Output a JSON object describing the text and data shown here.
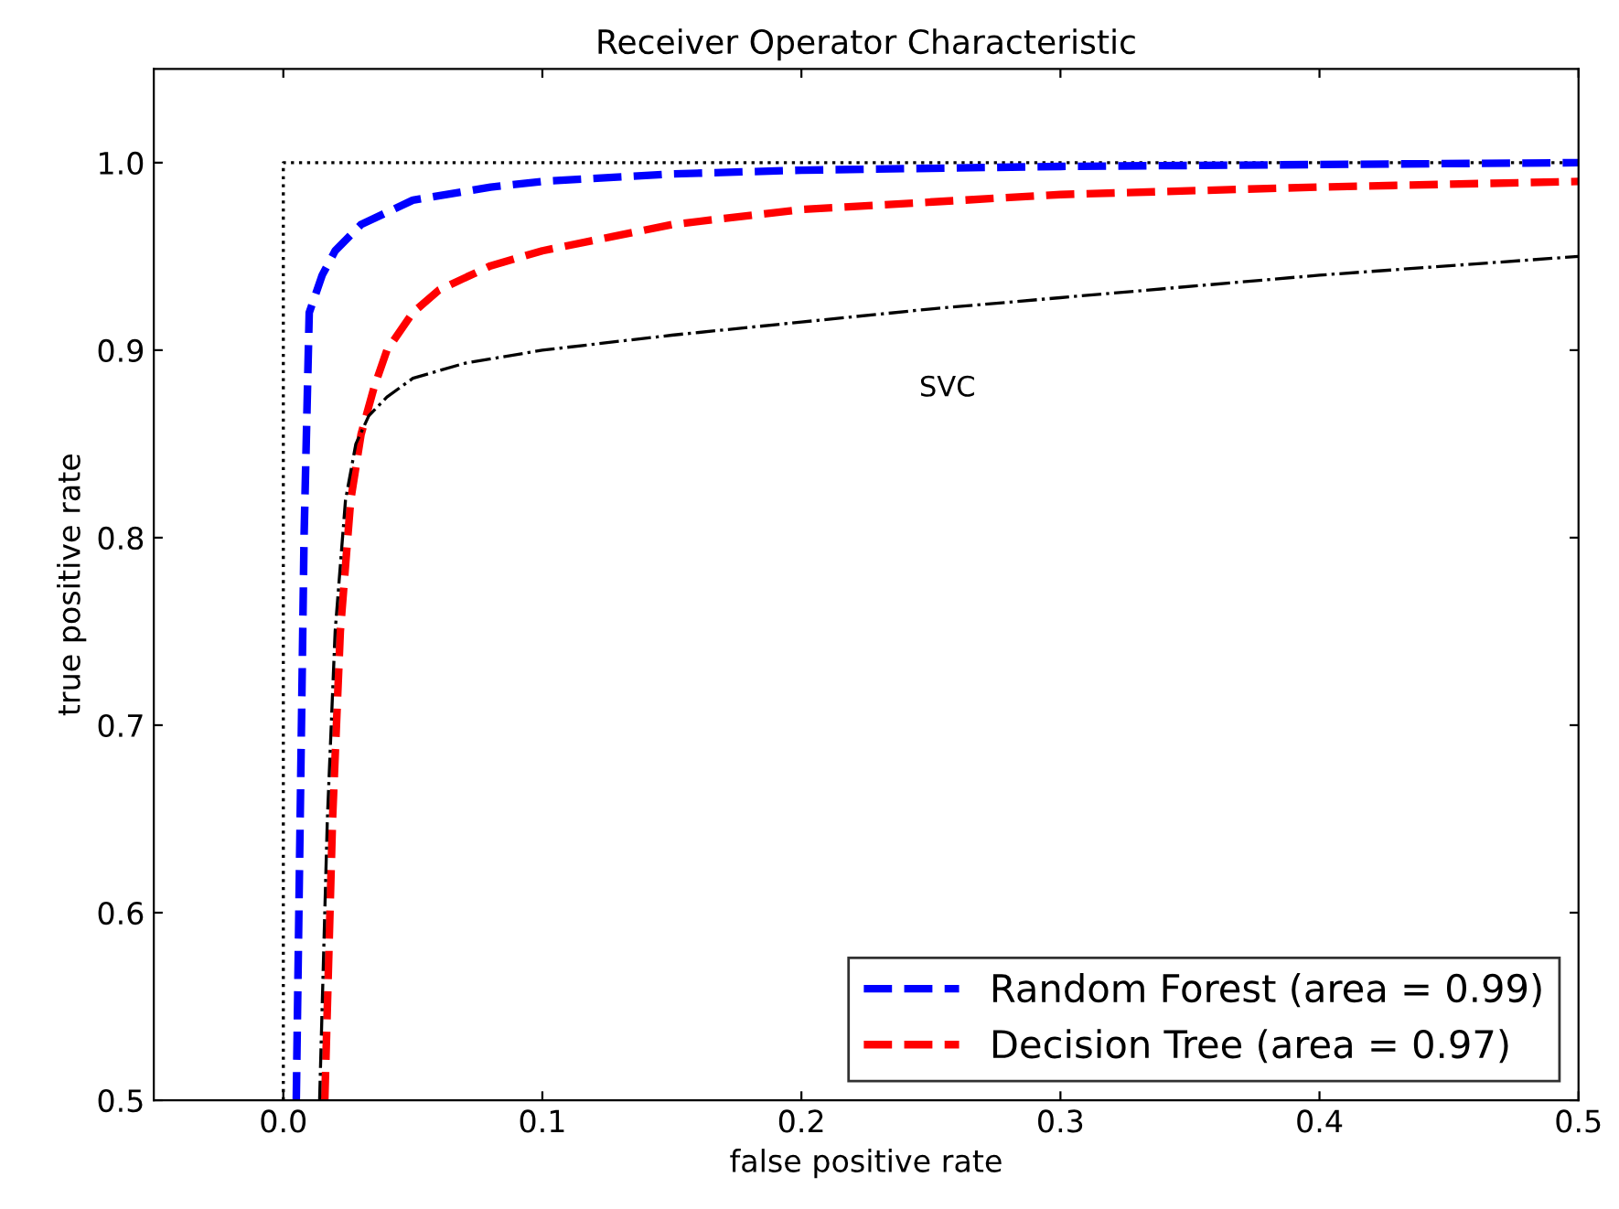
{
  "chart_data": {
    "type": "line",
    "title": "Receiver Operator Characteristic",
    "xlabel": "false positive rate",
    "ylabel": "true positive rate",
    "xlim": [
      -0.05,
      0.5
    ],
    "ylim": [
      0.5,
      1.05
    ],
    "xticks": [
      {
        "value": 0,
        "label": "0.0"
      },
      0.1,
      0.2,
      0.3,
      0.4,
      0.5
    ],
    "yticks": [
      0.5,
      0.6,
      0.7,
      0.8,
      0.9,
      {
        "value": 1,
        "label": "1.0"
      }
    ],
    "grid": false,
    "legend": "bottom right",
    "marker": "none",
    "series": [
      {
        "color": "#000000",
        "line_style": "dotted",
        "x": [
          0,
          0,
          0.5
        ],
        "values": [
          0.5,
          1,
          1
        ]
      },
      {
        "name": "Random Forest (area = 0.99)",
        "color": "#0000ff",
        "line_style": "dashed",
        "x": [
          0.005,
          0.008,
          0.01,
          0.015,
          0.02,
          0.03,
          0.05,
          0.08,
          0.1,
          0.15,
          0.2,
          0.3,
          0.4,
          0.5
        ],
        "values": [
          0.5,
          0.8,
          0.92,
          0.94,
          0.953,
          0.967,
          0.98,
          0.987,
          0.99,
          0.994,
          0.996,
          0.998,
          0.999,
          1.0
        ]
      },
      {
        "name": "Decision Tree (area = 0.97)",
        "color": "#ff0000",
        "line_style": "dashed",
        "x": [
          0.016,
          0.019,
          0.022,
          0.026,
          0.03,
          0.035,
          0.04,
          0.05,
          0.06,
          0.08,
          0.1,
          0.15,
          0.2,
          0.3,
          0.4,
          0.5
        ],
        "values": [
          0.5,
          0.65,
          0.75,
          0.82,
          0.855,
          0.88,
          0.9,
          0.92,
          0.932,
          0.945,
          0.953,
          0.967,
          0.975,
          0.983,
          0.987,
          0.99
        ]
      },
      {
        "color": "#000000",
        "line_style": "dashdot",
        "x": [
          0.014,
          0.017,
          0.02,
          0.024,
          0.028,
          0.033,
          0.04,
          0.05,
          0.07,
          0.1,
          0.15,
          0.2,
          0.25,
          0.3,
          0.4,
          0.5
        ],
        "values": [
          0.5,
          0.65,
          0.75,
          0.82,
          0.85,
          0.865,
          0.875,
          0.885,
          0.893,
          0.9,
          0.908,
          0.915,
          0.922,
          0.928,
          0.94,
          0.95
        ]
      }
    ],
    "annotations": [
      "SVC"
    ]
  }
}
